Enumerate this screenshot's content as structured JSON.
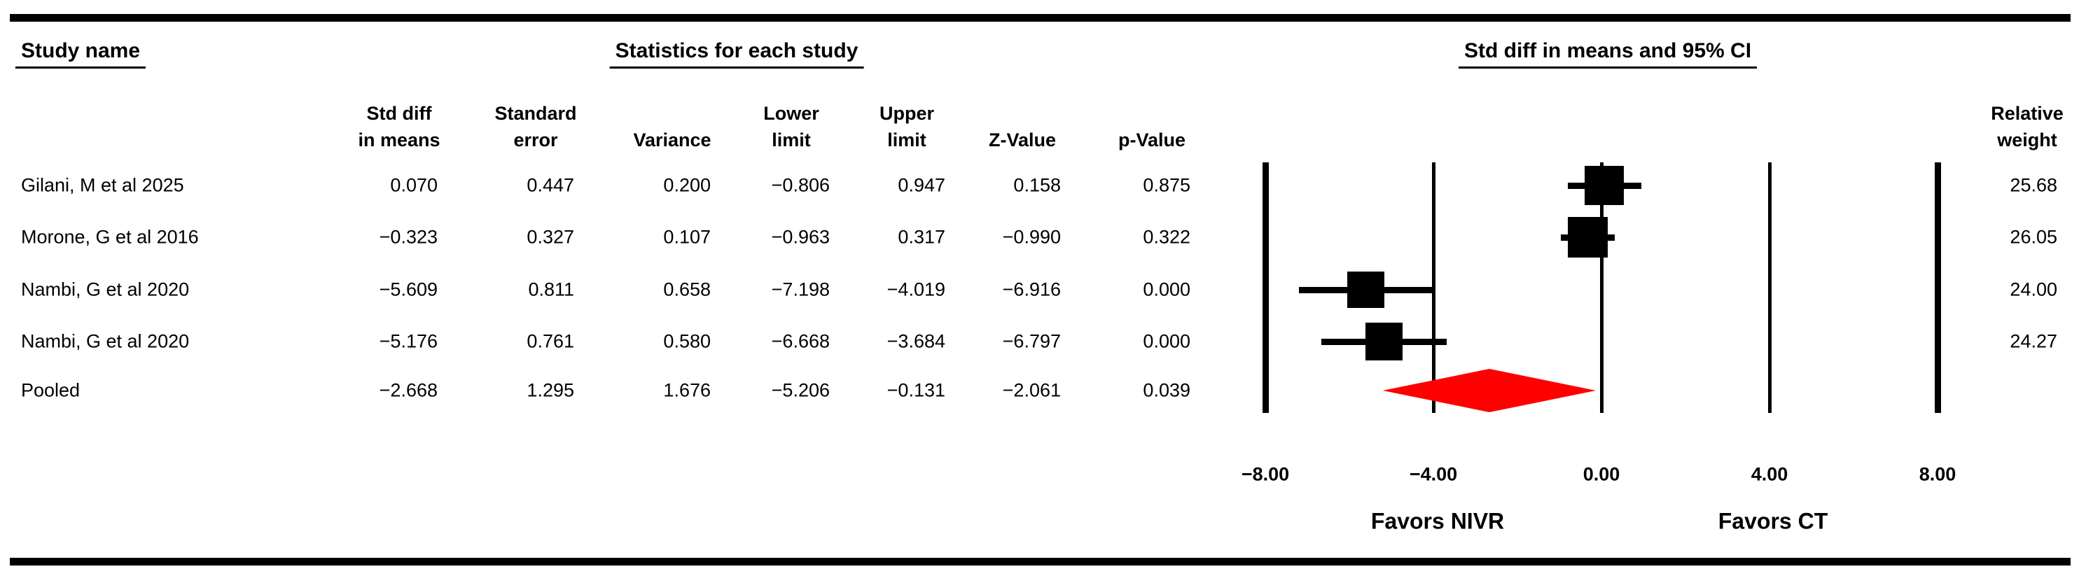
{
  "figure": {
    "headers": {
      "study": "Study name",
      "stats": "Statistics for each study",
      "plot": "Std diff in means and 95% CI",
      "relative_weight": [
        "Relative",
        "weight"
      ]
    },
    "stat_columns": [
      {
        "line1": "Std diff",
        "line2": "in means"
      },
      {
        "line1": "Standard",
        "line2": "error"
      },
      {
        "line1": "",
        "line2": "Variance"
      },
      {
        "line1": "Lower",
        "line2": "limit"
      },
      {
        "line1": "Upper",
        "line2": "limit"
      },
      {
        "line1": "",
        "line2": "Z-Value"
      },
      {
        "line1": "",
        "line2": "p-Value"
      }
    ]
  },
  "chart_data": {
    "type": "forest",
    "effect_measure": "Std diff in means",
    "ci_level": "95% CI",
    "x_axis": {
      "min": -8,
      "max": 8,
      "ticks": [
        -8,
        -4,
        0,
        4,
        8
      ],
      "tick_labels": [
        "−8.00",
        "−4.00",
        "0.00",
        "4.00",
        "8.00"
      ]
    },
    "favors_left": "Favors NIVR",
    "favors_right": "Favors CT",
    "marker_color": "#000000",
    "pooled_color": "#FF0000",
    "studies": [
      {
        "name": "Gilani, M et al 2025",
        "std_diff": 0.07,
        "std_err": 0.447,
        "variance": 0.2,
        "lower": -0.806,
        "upper": 0.947,
        "z": 0.158,
        "p": 0.875,
        "rel_weight": 25.68,
        "cells": [
          "0.070",
          "0.447",
          "0.200",
          "−0.806",
          "0.947",
          "0.158",
          "0.875"
        ],
        "weight_label": "25.68"
      },
      {
        "name": "Morone, G et al 2016",
        "std_diff": -0.323,
        "std_err": 0.327,
        "variance": 0.107,
        "lower": -0.963,
        "upper": 0.317,
        "z": -0.99,
        "p": 0.322,
        "rel_weight": 26.05,
        "cells": [
          "−0.323",
          "0.327",
          "0.107",
          "−0.963",
          "0.317",
          "−0.990",
          "0.322"
        ],
        "weight_label": "26.05"
      },
      {
        "name": "Nambi, G et al 2020",
        "std_diff": -5.609,
        "std_err": 0.811,
        "variance": 0.658,
        "lower": -7.198,
        "upper": -4.019,
        "z": -6.916,
        "p": 0.0,
        "rel_weight": 24.0,
        "cells": [
          "−5.609",
          "0.811",
          "0.658",
          "−7.198",
          "−4.019",
          "−6.916",
          "0.000"
        ],
        "weight_label": "24.00"
      },
      {
        "name": "Nambi, G et al 2020",
        "std_diff": -5.176,
        "std_err": 0.761,
        "variance": 0.58,
        "lower": -6.668,
        "upper": -3.684,
        "z": -6.797,
        "p": 0.0,
        "rel_weight": 24.27,
        "cells": [
          "−5.176",
          "0.761",
          "0.580",
          "−6.668",
          "−3.684",
          "−6.797",
          "0.000"
        ],
        "weight_label": "24.27"
      }
    ],
    "pooled": {
      "name": "Pooled",
      "std_diff": -2.668,
      "std_err": 1.295,
      "variance": 1.676,
      "lower": -5.206,
      "upper": -0.131,
      "z": -2.061,
      "p": 0.039,
      "cells": [
        "−2.668",
        "1.295",
        "1.676",
        "−5.206",
        "−0.131",
        "−2.061",
        "0.039"
      ]
    }
  }
}
